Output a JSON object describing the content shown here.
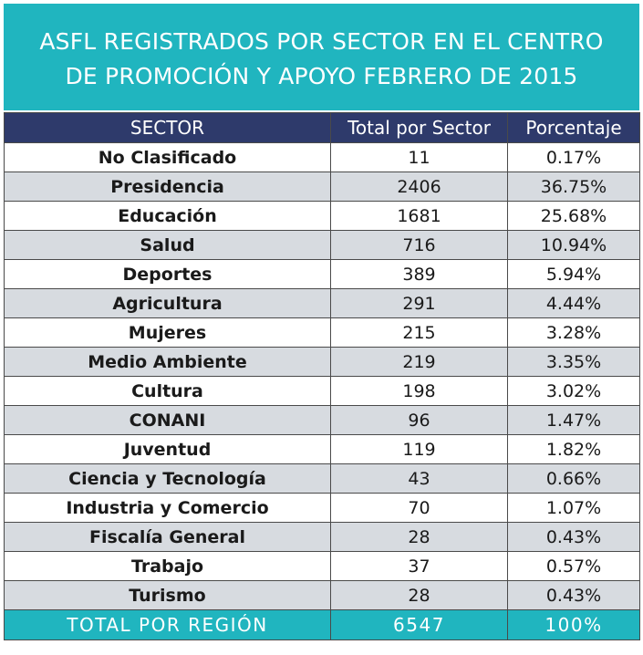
{
  "chart_data": {
    "type": "table",
    "title_lines": [
      "ASFL REGISTRADOS POR SECTOR EN EL CENTRO",
      "DE PROMOCIÓN Y APOYO FEBRERO DE 2015"
    ],
    "columns": [
      "SECTOR",
      "Total por Sector",
      "Porcentaje"
    ],
    "rows": [
      [
        "No Clasificado",
        "11",
        "0.17%"
      ],
      [
        "Presidencia",
        "2406",
        "36.75%"
      ],
      [
        "Educación",
        "1681",
        "25.68%"
      ],
      [
        "Salud",
        "716",
        "10.94%"
      ],
      [
        "Deportes",
        "389",
        "5.94%"
      ],
      [
        "Agricultura",
        "291",
        "4.44%"
      ],
      [
        "Mujeres",
        "215",
        "3.28%"
      ],
      [
        "Medio Ambiente",
        "219",
        "3.35%"
      ],
      [
        "Cultura",
        "198",
        "3.02%"
      ],
      [
        "CONANI",
        "96",
        "1.47%"
      ],
      [
        "Juventud",
        "119",
        "1.82%"
      ],
      [
        "Ciencia y Tecnología",
        "43",
        "0.66%"
      ],
      [
        "Industria y Comercio",
        "70",
        "1.07%"
      ],
      [
        "Fiscalía General",
        "28",
        "0.43%"
      ],
      [
        "Trabajo",
        "37",
        "0.57%"
      ],
      [
        "Turismo",
        "28",
        "0.43%"
      ]
    ],
    "total_row": [
      "TOTAL POR REGIÓN",
      "6547",
      "100%"
    ]
  },
  "colors": {
    "title_bg": "#20b5bf",
    "header_bg": "#2e3a6b",
    "row_alt_bg": "#d7dbe0",
    "total_bg": "#20b5bf"
  }
}
